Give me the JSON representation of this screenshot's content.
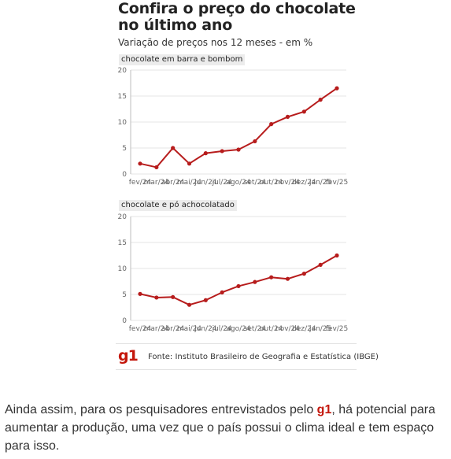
{
  "header": {
    "title": "Confira o preço do chocolate no último ano",
    "subtitle": "Variação de preços nos 12 meses - em %"
  },
  "chart_data": [
    {
      "type": "line",
      "title": "chocolate em barra e bombom",
      "categories": [
        "fev/24",
        "mar/24",
        "abr/24",
        "mai/24",
        "jun/24",
        "jul/24",
        "ago/24",
        "set/24",
        "out/24",
        "nov/24",
        "dez/24",
        "jan/25",
        "fev/25"
      ],
      "series": [
        {
          "values": [
            2.0,
            1.3,
            5.0,
            2.0,
            4.0,
            4.4,
            4.7,
            6.3,
            9.6,
            11.0,
            12.0,
            14.3,
            16.5
          ]
        }
      ],
      "ylim": [
        0,
        20
      ],
      "yticks": [
        0,
        5,
        10,
        15,
        20
      ],
      "grid": true,
      "color": "#b71c1c"
    },
    {
      "type": "line",
      "title": "chocolate e pó achocolatado",
      "categories": [
        "fev/24",
        "mar/24",
        "abr/24",
        "mai/24",
        "jun/24",
        "jul/24",
        "ago/24",
        "set/24",
        "out/24",
        "nov/24",
        "dez/24",
        "jan/25",
        "fev/25"
      ],
      "series": [
        {
          "values": [
            5.1,
            4.4,
            4.5,
            3.0,
            3.9,
            5.4,
            6.6,
            7.4,
            8.3,
            8.0,
            9.0,
            10.7,
            12.5
          ]
        }
      ],
      "ylim": [
        0,
        20
      ],
      "yticks": [
        0,
        5,
        10,
        15,
        20
      ],
      "grid": true,
      "color": "#b71c1c"
    }
  ],
  "footer": {
    "logo": "g1",
    "source": "Fonte: Instituto Brasileiro de Geografia e Estatística (IBGE)"
  },
  "paragraph": {
    "before": "Ainda assim, para os pesquisadores entrevistados pelo ",
    "brand": "g1",
    "after": ", há potencial para aumentar a produção, uma vez que o país possui o clima ideal e tem espaço para isso."
  }
}
